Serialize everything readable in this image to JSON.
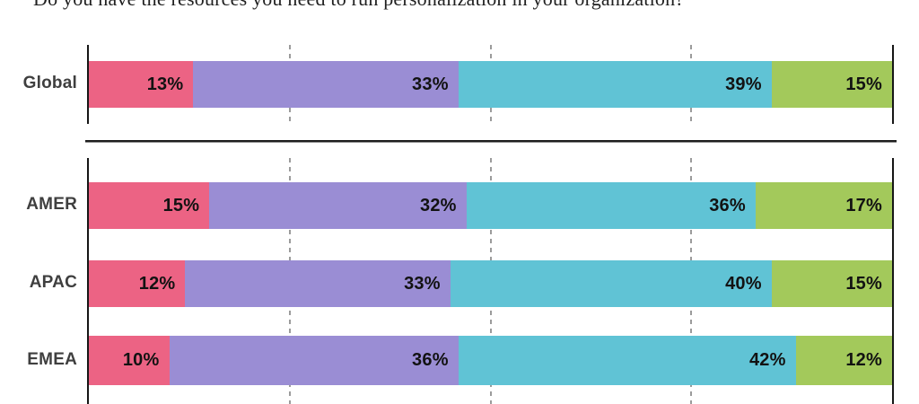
{
  "chart_data": {
    "type": "bar",
    "orientation": "horizontal",
    "stacked": true,
    "title": "Do you have the resources you need to run personalization in your organization?",
    "value_unit": "%",
    "x_axis": {
      "min": 0,
      "max": 100,
      "gridlines_pct": [
        25,
        50,
        75
      ],
      "solid_axis_at": [
        0,
        100
      ],
      "tick_labels_visible": false
    },
    "legend_visible": false,
    "series": [
      {
        "name": "pink",
        "color": "#EC6384"
      },
      {
        "name": "purple",
        "color": "#9A8DD4"
      },
      {
        "name": "teal",
        "color": "#60C3D5"
      },
      {
        "name": "green",
        "color": "#A3C95B"
      }
    ],
    "groups": [
      {
        "name": "global",
        "rows": [
          {
            "label": "Global",
            "values": [
              13,
              33,
              39,
              15
            ]
          }
        ]
      },
      {
        "name": "regions",
        "rows": [
          {
            "label": "AMER",
            "values": [
              15,
              32,
              36,
              17
            ]
          },
          {
            "label": "APAC",
            "values": [
              12,
              33,
              40,
              15
            ]
          },
          {
            "label": "EMEA",
            "values": [
              10,
              36,
              42,
              12
            ]
          }
        ]
      }
    ],
    "layout": {
      "axis_color": "#161616",
      "gridline_color": "#9B9B9B",
      "divider_color": "#1D1D1D",
      "label_color": "#3F3F3F",
      "value_label_color": "#121212"
    }
  }
}
